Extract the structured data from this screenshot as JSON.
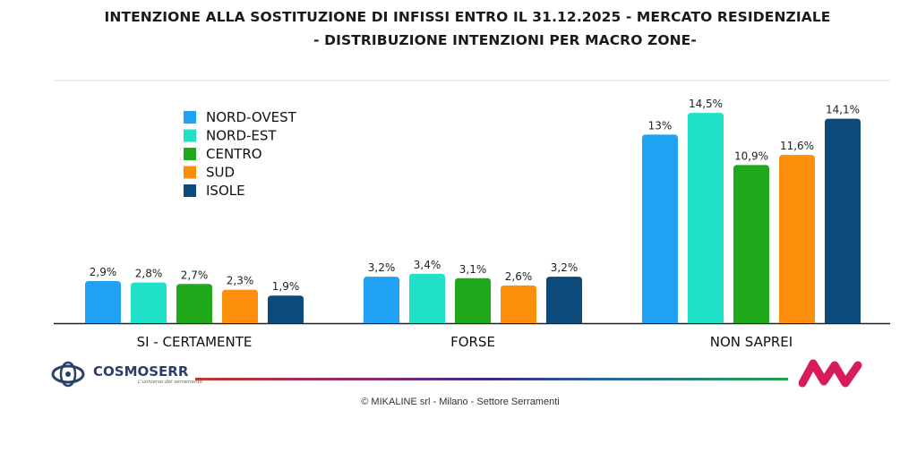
{
  "title_line1": "INTENZIONE ALLA SOSTITUZIONE DI INFISSI ENTRO IL 31.12.2025 - MERCATO RESIDENZIALE",
  "title_line2": "- DISTRIBUZIONE INTENZIONI  PER MACRO ZONE-",
  "chart_data": {
    "type": "bar",
    "categories": [
      "SI - CERTAMENTE",
      "FORSE",
      "NON SAPREI"
    ],
    "series": [
      {
        "name": "NORD-OVEST",
        "color": "#1ea2f1",
        "values": [
          2.9,
          3.2,
          13
        ],
        "labels": [
          "2,9%",
          "3,2%",
          "13%"
        ]
      },
      {
        "name": "NORD-EST",
        "color": "#1fe0c8",
        "values": [
          2.8,
          3.4,
          14.5
        ],
        "labels": [
          "2,8%",
          "3,4%",
          "14,5%"
        ]
      },
      {
        "name": "CENTRO",
        "color": "#1fa81a",
        "values": [
          2.7,
          3.1,
          10.9
        ],
        "labels": [
          "2,7%",
          "3,1%",
          "10,9%"
        ]
      },
      {
        "name": "SUD",
        "color": "#fd8e0c",
        "values": [
          2.3,
          2.6,
          11.6
        ],
        "labels": [
          "2,3%",
          "2,6%",
          "11,6%"
        ]
      },
      {
        "name": "ISOLE",
        "color": "#0b4a7a",
        "values": [
          1.9,
          3.2,
          14.1
        ],
        "labels": [
          "1,9%",
          "3,2%",
          "14,1%"
        ]
      }
    ],
    "ylim": [
      0,
      16
    ],
    "legend_position": "top-left",
    "grid": false
  },
  "logos": {
    "left_brand": "COSMOSERR",
    "left_tagline": "L'universo del serramento"
  },
  "credit": "© MIKALINE srl -  Milano - Settore Serramenti"
}
